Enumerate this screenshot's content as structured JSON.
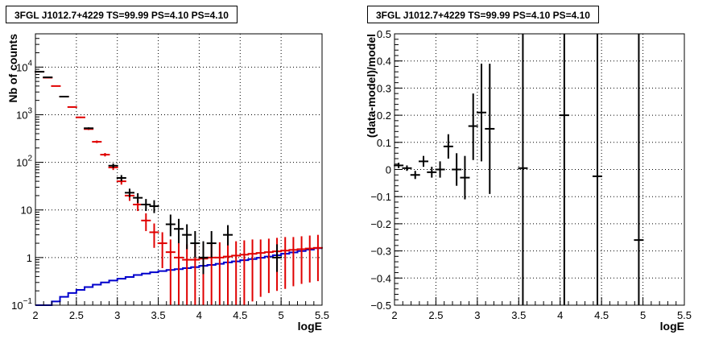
{
  "chart_data": [
    {
      "type": "scatter",
      "title": "3FGL J1012.7+4229 TS=99.99 PS=4.10 PS=4.10",
      "xlabel": "logE",
      "ylabel": "Nb of counts",
      "xlim": [
        2,
        5.5
      ],
      "ylim": [
        0.1,
        50000
      ],
      "yscale": "log",
      "grid": true,
      "xticks": [
        2,
        2.5,
        3,
        3.5,
        4,
        4.5,
        5,
        5.5
      ],
      "xtick_labels": [
        "2",
        "2.5",
        "3",
        "3.5",
        "4",
        "4.5",
        "5",
        "5.5"
      ],
      "yticks": [
        0.1,
        1,
        10,
        100,
        1000,
        10000
      ],
      "ytick_labels": [
        {
          "base": "10",
          "exp": "−1"
        },
        {
          "base": "1",
          "exp": ""
        },
        {
          "base": "10",
          "exp": ""
        },
        {
          "base": "10",
          "exp": "2"
        },
        {
          "base": "10",
          "exp": "3"
        },
        {
          "base": "10",
          "exp": "4"
        }
      ],
      "colors": {
        "data": "#000000",
        "model": "#e00000",
        "background": "#0000cc",
        "grid": "#000000"
      },
      "data_points": [
        {
          "x": 2.05,
          "y": 8000,
          "lo": 7900,
          "hi": 8100
        },
        {
          "x": 2.15,
          "y": 6100,
          "lo": 6020,
          "hi": 6180
        },
        {
          "x": 2.35,
          "y": 2400,
          "lo": 2350,
          "hi": 2450
        },
        {
          "x": 2.65,
          "y": 520,
          "lo": 497,
          "hi": 543
        },
        {
          "x": 2.95,
          "y": 85,
          "lo": 76,
          "hi": 94
        },
        {
          "x": 3.05,
          "y": 47,
          "lo": 40,
          "hi": 54
        },
        {
          "x": 3.15,
          "y": 23,
          "lo": 18.5,
          "hi": 28
        },
        {
          "x": 3.25,
          "y": 18,
          "lo": 14,
          "hi": 22.5
        },
        {
          "x": 3.35,
          "y": 13,
          "lo": 9.5,
          "hi": 17
        },
        {
          "x": 3.45,
          "y": 12,
          "lo": 8.6,
          "hi": 16
        },
        {
          "x": 3.65,
          "y": 5,
          "lo": 2.8,
          "hi": 8
        },
        {
          "x": 3.75,
          "y": 4,
          "lo": 2.0,
          "hi": 6.5
        },
        {
          "x": 3.85,
          "y": 3,
          "lo": 1.5,
          "hi": 5
        },
        {
          "x": 3.95,
          "y": 2,
          "lo": 1.0,
          "hi": 3.6
        },
        {
          "x": 4.05,
          "y": 1,
          "lo": 0.45,
          "hi": 2.2
        },
        {
          "x": 4.15,
          "y": 2,
          "lo": 1.0,
          "hi": 3.6
        },
        {
          "x": 4.35,
          "y": 3,
          "lo": 1.8,
          "hi": 4.8
        },
        {
          "x": 4.95,
          "y": 1,
          "lo": 0.5,
          "hi": 1.9
        }
      ],
      "model_points": [
        {
          "x": 2.05,
          "y": 8000,
          "lo": 7900,
          "hi": 8100
        },
        {
          "x": 2.15,
          "y": 6000,
          "lo": 5920,
          "hi": 6080
        },
        {
          "x": 2.25,
          "y": 4000,
          "lo": 3940,
          "hi": 4060
        },
        {
          "x": 2.35,
          "y": 2400,
          "lo": 2350,
          "hi": 2450
        },
        {
          "x": 2.45,
          "y": 1450,
          "lo": 1410,
          "hi": 1490
        },
        {
          "x": 2.55,
          "y": 880,
          "lo": 850,
          "hi": 910
        },
        {
          "x": 2.65,
          "y": 500,
          "lo": 478,
          "hi": 522
        },
        {
          "x": 2.75,
          "y": 270,
          "lo": 254,
          "hi": 287
        },
        {
          "x": 2.85,
          "y": 145,
          "lo": 133,
          "hi": 157
        },
        {
          "x": 2.95,
          "y": 78,
          "lo": 69,
          "hi": 87
        },
        {
          "x": 3.05,
          "y": 40,
          "lo": 34,
          "hi": 46
        },
        {
          "x": 3.15,
          "y": 20,
          "lo": 15.5,
          "hi": 24.5
        },
        {
          "x": 3.25,
          "y": 13,
          "lo": 9.5,
          "hi": 16.5
        },
        {
          "x": 3.35,
          "y": 6,
          "lo": 3.6,
          "hi": 8.5
        },
        {
          "x": 3.45,
          "y": 3.4,
          "lo": 1.6,
          "hi": 5.2
        },
        {
          "x": 3.55,
          "y": 2,
          "lo": 0.6,
          "hi": 3.4
        },
        {
          "x": 3.65,
          "y": 1.3,
          "lo": 0.1,
          "hi": 2.4
        },
        {
          "x": 3.75,
          "y": 1.0,
          "lo": 0.1,
          "hi": 2.0
        },
        {
          "x": 3.85,
          "y": 0.9,
          "lo": 0.1,
          "hi": 1.9
        },
        {
          "x": 3.95,
          "y": 0.9,
          "lo": 0.1,
          "hi": 1.9
        },
        {
          "x": 4.05,
          "y": 0.95,
          "lo": 0.1,
          "hi": 2.0
        },
        {
          "x": 4.15,
          "y": 1.0,
          "lo": 0.1,
          "hi": 2.0
        },
        {
          "x": 4.25,
          "y": 1.0,
          "lo": 0.1,
          "hi": 2.1
        },
        {
          "x": 4.35,
          "y": 1.05,
          "lo": 0.1,
          "hi": 2.2
        },
        {
          "x": 4.45,
          "y": 1.1,
          "lo": 0.1,
          "hi": 2.2
        },
        {
          "x": 4.55,
          "y": 1.15,
          "lo": 0.1,
          "hi": 2.3
        },
        {
          "x": 4.65,
          "y": 1.2,
          "lo": 0.12,
          "hi": 2.4
        },
        {
          "x": 4.75,
          "y": 1.25,
          "lo": 0.15,
          "hi": 2.4
        },
        {
          "x": 4.85,
          "y": 1.3,
          "lo": 0.18,
          "hi": 2.5
        },
        {
          "x": 4.95,
          "y": 1.35,
          "lo": 0.2,
          "hi": 2.6
        },
        {
          "x": 5.05,
          "y": 1.4,
          "lo": 0.22,
          "hi": 2.7
        },
        {
          "x": 5.15,
          "y": 1.45,
          "lo": 0.25,
          "hi": 2.7
        },
        {
          "x": 5.25,
          "y": 1.5,
          "lo": 0.28,
          "hi": 2.8
        },
        {
          "x": 5.35,
          "y": 1.55,
          "lo": 0.3,
          "hi": 2.9
        },
        {
          "x": 5.45,
          "y": 1.6,
          "lo": 0.32,
          "hi": 3.0
        }
      ],
      "background_edges": [
        2.0,
        2.1,
        2.2,
        2.3,
        2.4,
        2.5,
        2.6,
        2.7,
        2.8,
        2.9,
        3.0,
        3.1,
        3.2,
        3.3,
        3.4,
        3.5,
        3.6,
        3.7,
        3.8,
        3.9,
        4.0,
        4.1,
        4.2,
        4.3,
        4.4,
        4.5,
        4.6,
        4.7,
        4.8,
        4.9,
        5.0,
        5.1,
        5.2,
        5.3,
        5.4,
        5.5
      ],
      "background_values": [
        0.1,
        0.1,
        0.12,
        0.15,
        0.18,
        0.21,
        0.24,
        0.27,
        0.3,
        0.33,
        0.36,
        0.39,
        0.43,
        0.46,
        0.49,
        0.52,
        0.55,
        0.57,
        0.6,
        0.63,
        0.67,
        0.7,
        0.74,
        0.79,
        0.83,
        0.88,
        0.93,
        0.99,
        1.05,
        1.12,
        1.2,
        1.28,
        1.37,
        1.47,
        1.57
      ]
    },
    {
      "type": "scatter",
      "title": "3FGL J1012.7+4229 TS=99.99 PS=4.10 PS=4.10",
      "xlabel": "logE",
      "ylabel": "(data-model)/model",
      "xlim": [
        2,
        5.5
      ],
      "ylim": [
        -0.5,
        0.5
      ],
      "grid": true,
      "xticks": [
        2,
        2.5,
        3,
        3.5,
        4,
        4.5,
        5,
        5.5
      ],
      "xtick_labels": [
        "2",
        "2.5",
        "3",
        "3.5",
        "4",
        "4.5",
        "5",
        "5.5"
      ],
      "yticks": [
        -0.5,
        -0.4,
        -0.3,
        -0.2,
        -0.1,
        0,
        0.1,
        0.2,
        0.3,
        0.4,
        0.5
      ],
      "ytick_labels": [
        "−0.5",
        "−0.4",
        "−0.3",
        "−0.2",
        "−0.1",
        "0",
        "0.1",
        "0.2",
        "0.3",
        "0.4",
        "0.5"
      ],
      "colors": {
        "data": "#000000",
        "grid": "#000000"
      },
      "data_points": [
        {
          "x": 2.05,
          "y": 0.015,
          "lo": 0.005,
          "hi": 0.025
        },
        {
          "x": 2.15,
          "y": 0.005,
          "lo": -0.005,
          "hi": 0.015
        },
        {
          "x": 2.25,
          "y": -0.02,
          "lo": -0.035,
          "hi": -0.005
        },
        {
          "x": 2.35,
          "y": 0.03,
          "lo": 0.01,
          "hi": 0.05
        },
        {
          "x": 2.45,
          "y": -0.01,
          "lo": -0.03,
          "hi": 0.01
        },
        {
          "x": 2.55,
          "y": 0.0,
          "lo": -0.03,
          "hi": 0.03
        },
        {
          "x": 2.65,
          "y": 0.085,
          "lo": 0.04,
          "hi": 0.13
        },
        {
          "x": 2.75,
          "y": 0.0,
          "lo": -0.06,
          "hi": 0.06
        },
        {
          "x": 2.85,
          "y": -0.03,
          "lo": -0.11,
          "hi": 0.05
        },
        {
          "x": 2.95,
          "y": 0.16,
          "lo": 0.035,
          "hi": 0.28
        },
        {
          "x": 3.05,
          "y": 0.21,
          "lo": 0.03,
          "hi": 0.39
        },
        {
          "x": 3.15,
          "y": 0.15,
          "lo": -0.09,
          "hi": 0.39
        },
        {
          "x": 3.55,
          "y": 0.005,
          "lo": -0.5,
          "hi": 0.5
        },
        {
          "x": 4.05,
          "y": 0.2,
          "lo": -0.5,
          "hi": 0.5
        },
        {
          "x": 4.45,
          "y": -0.025,
          "lo": -0.5,
          "hi": 0.5
        },
        {
          "x": 4.95,
          "y": -0.26,
          "lo": -0.5,
          "hi": 0.5
        }
      ]
    }
  ]
}
